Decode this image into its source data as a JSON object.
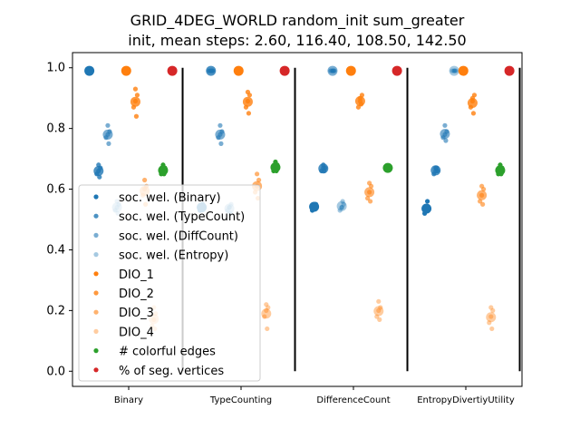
{
  "title_line1": "GRID_4DEG_WORLD random_init sum_greater",
  "title_line2": "init, mean steps: 2.60, 116.40, 108.50, 142.50",
  "chart_data": {
    "type": "scatter",
    "categories": [
      "Binary",
      "TypeCounting",
      "DifferenceCount",
      "EntropyDivertiyUtility"
    ],
    "ylim": [
      -0.05,
      1.05
    ],
    "yticks": [
      "0.0",
      "0.2",
      "0.4",
      "0.6",
      "0.8",
      "1.0"
    ],
    "grid": false,
    "legend_position": "lower-left",
    "colors": {
      "sw_binary": "#1f77b4",
      "sw_typecount": "#1f77b4",
      "sw_diffcount": "#1f77b4",
      "sw_entropy": "#1f77b4",
      "dio1": "#ff7f0e",
      "dio2": "#ff7f0e",
      "dio3": "#ff7f0e",
      "dio4": "#ff7f0e",
      "colorful": "#2ca02c",
      "segverts": "#d62728"
    },
    "series": [
      {
        "key": "sw_binary",
        "name": "soc. wel. (Binary)",
        "alpha": 1.0,
        "values": [
          [
            0.99,
            0.99,
            0.99,
            0.99,
            0.99
          ],
          [
            0.54,
            0.53,
            0.54,
            0.54,
            0.55
          ],
          [
            0.54,
            0.53,
            0.55,
            0.54,
            0.55
          ],
          [
            0.53,
            0.52,
            0.54,
            0.53,
            0.56
          ]
        ]
      },
      {
        "key": "sw_typecount",
        "name": "soc. wel. (TypeCount)",
        "alpha": 0.8,
        "values": [
          [
            0.66,
            0.65,
            0.67,
            0.68,
            0.64
          ],
          [
            0.99,
            0.99,
            0.99,
            0.99,
            0.99
          ],
          [
            0.67,
            0.66,
            0.67,
            0.68,
            0.66
          ],
          [
            0.66,
            0.65,
            0.66,
            0.67,
            0.67
          ]
        ]
      },
      {
        "key": "sw_diffcount",
        "name": "soc. wel. (DiffCount)",
        "alpha": 0.6,
        "values": [
          [
            0.78,
            0.77,
            0.79,
            0.81,
            0.75
          ],
          [
            0.78,
            0.77,
            0.79,
            0.81,
            0.75
          ],
          [
            0.99,
            0.99,
            0.99,
            0.99,
            0.99
          ],
          [
            0.78,
            0.77,
            0.79,
            0.81,
            0.76
          ]
        ]
      },
      {
        "key": "sw_entropy",
        "name": "soc. wel. (Entropy)",
        "alpha": 0.4,
        "values": [
          [
            0.54,
            0.53,
            0.55,
            0.56,
            0.52
          ],
          [
            0.54,
            0.53,
            0.55,
            0.54,
            0.52
          ],
          [
            0.54,
            0.53,
            0.55,
            0.54,
            0.56
          ],
          [
            0.99,
            0.99,
            0.99,
            0.99,
            0.99
          ]
        ]
      },
      {
        "key": "dio1",
        "name": "DIO_1",
        "alpha": 1.0,
        "values": [
          [
            0.99,
            0.99,
            0.99,
            0.99,
            0.99
          ],
          [
            0.99,
            0.99,
            0.99,
            0.99,
            0.99
          ],
          [
            0.99,
            0.99,
            0.99,
            0.99,
            0.99
          ],
          [
            0.99,
            0.99,
            0.99,
            0.99,
            0.99
          ]
        ]
      },
      {
        "key": "dio2",
        "name": "DIO_2",
        "alpha": 0.8,
        "values": [
          [
            0.89,
            0.87,
            0.91,
            0.93,
            0.84
          ],
          [
            0.89,
            0.87,
            0.91,
            0.92,
            0.85
          ],
          [
            0.89,
            0.87,
            0.91,
            0.9,
            0.88
          ],
          [
            0.89,
            0.87,
            0.91,
            0.9,
            0.85
          ]
        ]
      },
      {
        "key": "dio3",
        "name": "DIO_3",
        "alpha": 0.6,
        "values": [
          [
            0.6,
            0.58,
            0.61,
            0.63,
            0.55
          ],
          [
            0.61,
            0.59,
            0.63,
            0.65,
            0.57
          ],
          [
            0.59,
            0.57,
            0.61,
            0.62,
            0.56
          ],
          [
            0.58,
            0.56,
            0.6,
            0.61,
            0.55
          ]
        ]
      },
      {
        "key": "dio4",
        "name": "DIO_4",
        "alpha": 0.4,
        "values": [
          [
            0.17,
            0.15,
            0.19,
            0.21,
            0.14
          ],
          [
            0.2,
            0.18,
            0.21,
            0.22,
            0.14
          ],
          [
            0.2,
            0.18,
            0.21,
            0.23,
            0.17
          ],
          [
            0.18,
            0.16,
            0.2,
            0.21,
            0.14
          ]
        ]
      },
      {
        "key": "colorful",
        "name": "# colorful edges",
        "alpha": 1.0,
        "values": [
          [
            0.66,
            0.65,
            0.67,
            0.68,
            0.65
          ],
          [
            0.67,
            0.66,
            0.68,
            0.69,
            0.66
          ],
          [
            0.67,
            0.67,
            0.67,
            0.67,
            0.67
          ],
          [
            0.66,
            0.65,
            0.67,
            0.68,
            0.65
          ]
        ]
      },
      {
        "key": "segverts",
        "name": "% of seg. vertices",
        "alpha": 1.0,
        "values": [
          [
            0.99,
            0.99,
            0.99,
            0.99,
            0.99
          ],
          [
            0.99,
            0.99,
            0.99,
            0.99,
            0.99
          ],
          [
            0.99,
            0.99,
            0.99,
            0.99,
            0.99
          ],
          [
            0.99,
            0.99,
            0.99,
            0.99,
            0.99
          ]
        ]
      }
    ]
  }
}
